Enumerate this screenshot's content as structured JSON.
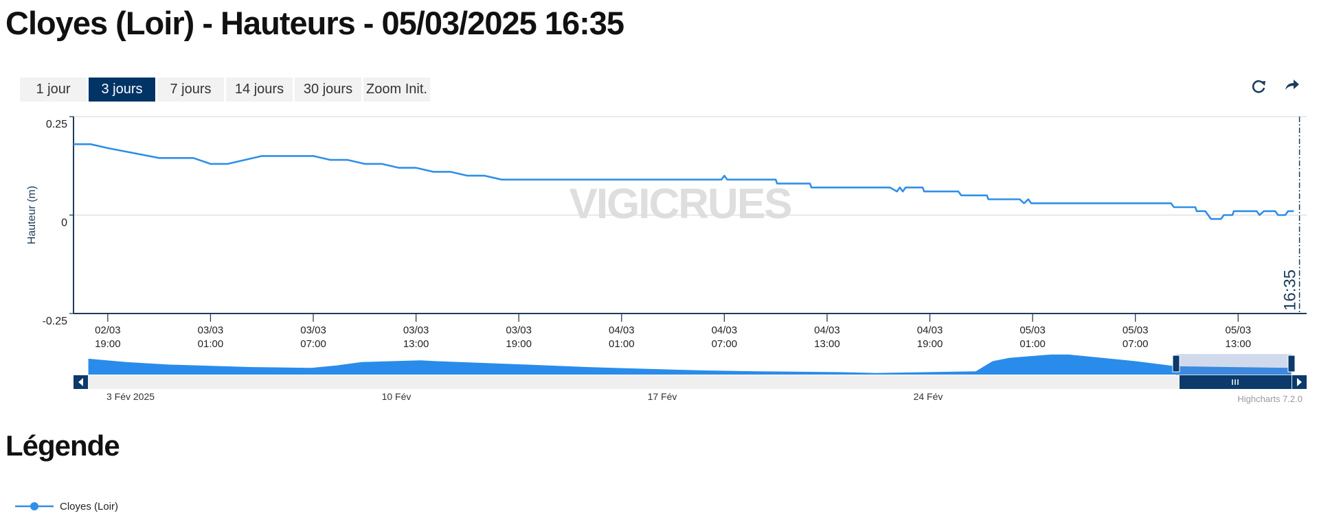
{
  "header": {
    "title": "Cloyes (Loir) - Hauteurs - 05/03/2025 16:35"
  },
  "buttons": [
    {
      "label": "1 jour",
      "active": false
    },
    {
      "label": "3 jours",
      "active": true
    },
    {
      "label": "7 jours",
      "active": false
    },
    {
      "label": "14 jours",
      "active": false
    },
    {
      "label": "30 jours",
      "active": false
    },
    {
      "label": "Zoom Init.",
      "active": false
    }
  ],
  "chart_data": {
    "type": "line",
    "y_label": "Hauteur (m)",
    "watermark": "VIGICRUES",
    "x": [
      "02/03 17:00",
      "02/03 18:00",
      "02/03 19:00",
      "02/03 22:00",
      "03/03 00:00",
      "03/03 01:00",
      "03/03 02:00",
      "03/03 04:00",
      "03/03 07:00",
      "03/03 08:00",
      "03/03 09:00",
      "03/03 10:00",
      "03/03 11:00",
      "03/03 12:00",
      "03/03 13:00",
      "03/03 14:00",
      "03/03 15:00",
      "03/03 16:00",
      "03/03 17:00",
      "03/03 18:00",
      "04/03 06:50",
      "04/03 07:00",
      "04/03 07:10",
      "04/03 10:00",
      "04/03 10:05",
      "04/03 12:00",
      "04/03 12:05",
      "04/03 16:40",
      "04/03 17:05",
      "04/03 17:15",
      "04/03 17:25",
      "04/03 17:35",
      "04/03 18:35",
      "04/03 18:40",
      "04/03 20:40",
      "04/03 20:50",
      "04/03 22:20",
      "04/03 22:25",
      "05/03 00:15",
      "05/03 00:30",
      "05/03 00:45",
      "05/03 00:55",
      "05/03 09:05",
      "05/03 09:15",
      "05/03 10:30",
      "05/03 10:35",
      "05/03 11:05",
      "05/03 11:25",
      "05/03 12:00",
      "05/03 12:10",
      "05/03 12:40",
      "05/03 12:45",
      "05/03 14:05",
      "05/03 14:15",
      "05/03 14:30",
      "05/03 15:10",
      "05/03 15:20",
      "05/03 15:45",
      "05/03 15:55",
      "05/03 16:15"
    ],
    "series": [
      {
        "name": "Cloyes (Loir)",
        "color": "#2f8fe8",
        "values": [
          0.18,
          0.18,
          0.17,
          0.145,
          0.145,
          0.13,
          0.13,
          0.15,
          0.15,
          0.14,
          0.14,
          0.13,
          0.13,
          0.12,
          0.12,
          0.11,
          0.11,
          0.1,
          0.1,
          0.09,
          0.09,
          0.1,
          0.09,
          0.09,
          0.08,
          0.08,
          0.07,
          0.07,
          0.06,
          0.07,
          0.06,
          0.07,
          0.07,
          0.06,
          0.06,
          0.05,
          0.05,
          0.04,
          0.04,
          0.03,
          0.04,
          0.03,
          0.03,
          0.02,
          0.02,
          0.01,
          0.01,
          -0.01,
          -0.01,
          0,
          0,
          0.01,
          0.01,
          0,
          0.01,
          0.01,
          0,
          0,
          0.01,
          0.01
        ]
      }
    ],
    "xlim": [
      "02/03 17:00",
      "05/03 17:00"
    ],
    "xticks": [
      {
        "value": "02/03 19:00",
        "label": [
          "02/03",
          "19:00"
        ]
      },
      {
        "value": "03/03 01:00",
        "label": [
          "03/03",
          "01:00"
        ]
      },
      {
        "value": "03/03 07:00",
        "label": [
          "03/03",
          "07:00"
        ]
      },
      {
        "value": "03/03 13:00",
        "label": [
          "03/03",
          "13:00"
        ]
      },
      {
        "value": "03/03 19:00",
        "label": [
          "03/03",
          "19:00"
        ]
      },
      {
        "value": "04/03 01:00",
        "label": [
          "04/03",
          "01:00"
        ]
      },
      {
        "value": "04/03 07:00",
        "label": [
          "04/03",
          "07:00"
        ]
      },
      {
        "value": "04/03 13:00",
        "label": [
          "04/03",
          "13:00"
        ]
      },
      {
        "value": "04/03 19:00",
        "label": [
          "04/03",
          "19:00"
        ]
      },
      {
        "value": "05/03 01:00",
        "label": [
          "05/03",
          "01:00"
        ]
      },
      {
        "value": "05/03 07:00",
        "label": [
          "05/03",
          "07:00"
        ]
      },
      {
        "value": "05/03 13:00",
        "label": [
          "05/03",
          "13:00"
        ]
      }
    ],
    "ylim": [
      -0.25,
      0.25
    ],
    "yticks": [
      0.25,
      0,
      -0.25
    ],
    "grid": true,
    "now": {
      "value": "05/03 16:35",
      "label": "16:35"
    }
  },
  "navigator": {
    "labels": [
      "3 Fév 2025",
      "10 Fév",
      "17 Fév",
      "24 Fév"
    ]
  },
  "credits": "Highcharts 7.2.0",
  "legend": {
    "title": "Légende"
  }
}
